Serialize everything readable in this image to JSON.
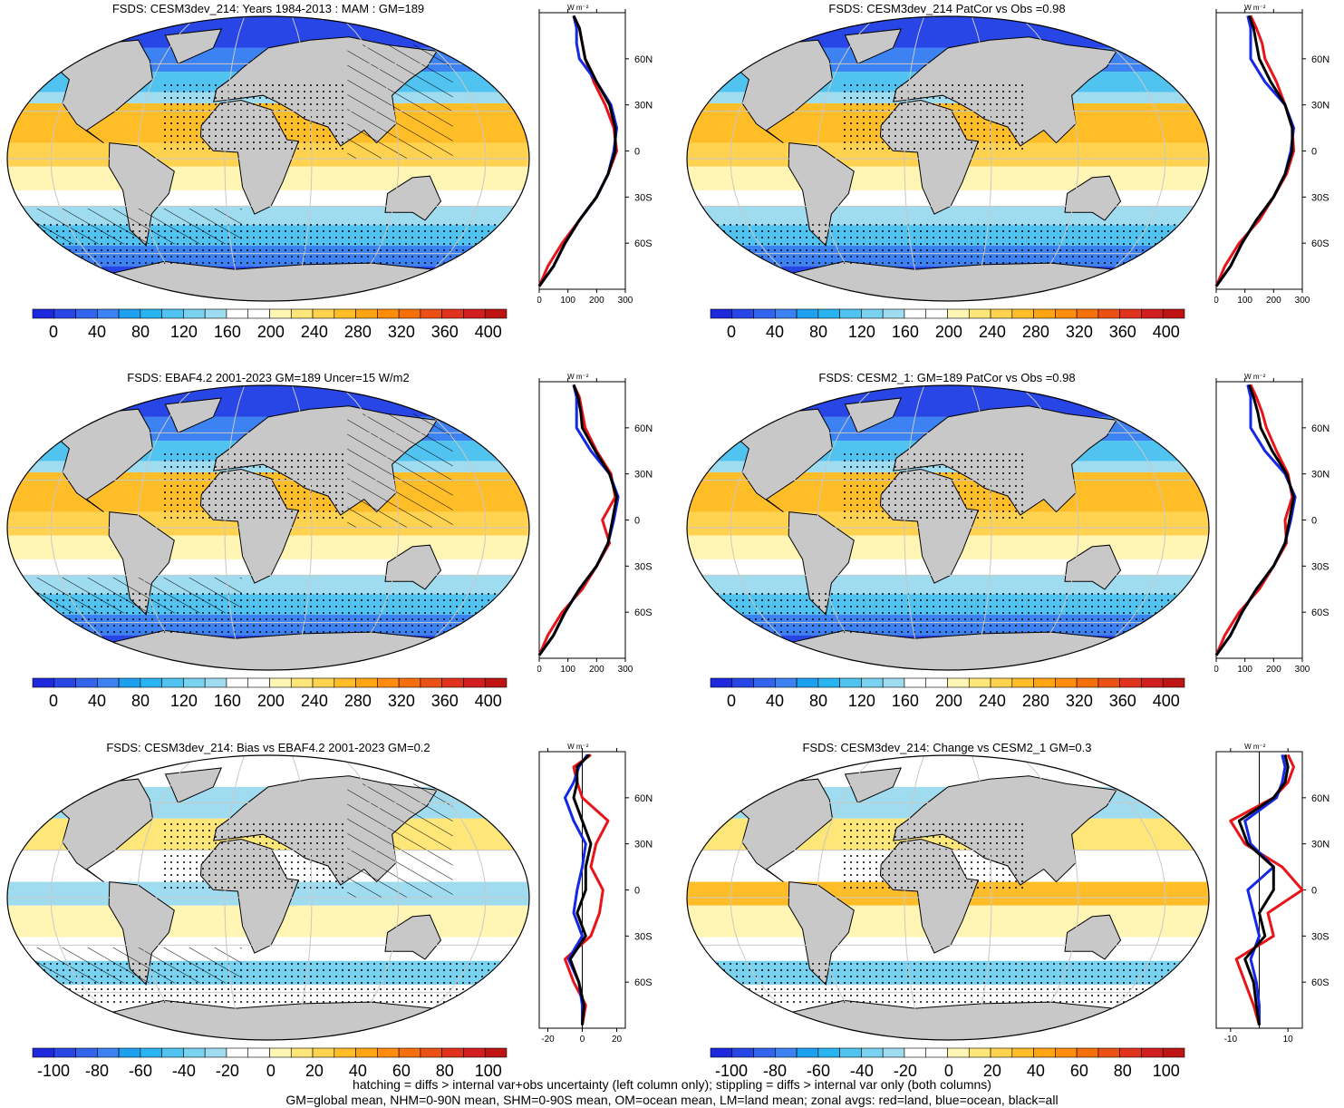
{
  "footer": {
    "line1": "hatching = diffs > internal var+obs uncertainty (left column only); stippling = diffs > internal var only (both columns)",
    "line2": "GM=global mean, NHM=0-90N mean, SHM=0-90S mean, OM=ocean mean, LM=land mean; zonal avgs: red=land, blue=ocean, black=all"
  },
  "colors": {
    "land": "#c8c8c8",
    "zonal_land": "#e8141a",
    "zonal_ocean": "#1428e6",
    "zonal_all": "#000000",
    "gridline": "#c8c8c8"
  },
  "panels": [
    {
      "title": "FSDS: CESM3dev_214: Years 1984-2013 : MAM : GM=189",
      "kind": "absolute",
      "colorbar_labels": [
        "0",
        "40",
        "80",
        "120",
        "160",
        "200",
        "240",
        "280",
        "320",
        "360",
        "400"
      ],
      "zonal_xticks": [
        "0",
        "100",
        "200",
        "300"
      ],
      "zonal_unit": "W m⁻²",
      "lat_labels": [
        "60N",
        "30N",
        "0",
        "30S",
        "60S"
      ],
      "hatching": true,
      "stippling": true
    },
    {
      "title": "FSDS: CESM3dev_214 PatCor vs Obs =0.98",
      "kind": "absolute",
      "colorbar_labels": [
        "0",
        "40",
        "80",
        "120",
        "160",
        "200",
        "240",
        "280",
        "320",
        "360",
        "400"
      ],
      "zonal_xticks": [
        "0",
        "100",
        "200",
        "300"
      ],
      "zonal_unit": "W m⁻²",
      "lat_labels": [
        "60N",
        "30N",
        "0",
        "30S",
        "60S"
      ],
      "hatching": false,
      "stippling": true
    },
    {
      "title": "FSDS: EBAF4.2 2001-2023 GM=189 Uncer=15 W/m2",
      "kind": "absolute",
      "colorbar_labels": [
        "0",
        "40",
        "80",
        "120",
        "160",
        "200",
        "240",
        "280",
        "320",
        "360",
        "400"
      ],
      "zonal_xticks": [
        "0",
        "100",
        "200",
        "300"
      ],
      "zonal_unit": "W m⁻²",
      "lat_labels": [
        "60N",
        "30N",
        "0",
        "30S",
        "60S"
      ],
      "hatching": true,
      "stippling": true
    },
    {
      "title": "FSDS: CESM2_1: GM=189 PatCor vs Obs =0.98",
      "kind": "absolute",
      "colorbar_labels": [
        "0",
        "40",
        "80",
        "120",
        "160",
        "200",
        "240",
        "280",
        "320",
        "360",
        "400"
      ],
      "zonal_xticks": [
        "0",
        "100",
        "200",
        "300"
      ],
      "zonal_unit": "W m⁻²",
      "lat_labels": [
        "60N",
        "30N",
        "0",
        "30S",
        "60S"
      ],
      "hatching": false,
      "stippling": true
    },
    {
      "title": "FSDS: CESM3dev_214: Bias vs EBAF4.2 2001-2023 GM=0.2",
      "kind": "diff",
      "colorbar_labels": [
        "-100",
        "-80",
        "-60",
        "-40",
        "-20",
        "0",
        "20",
        "40",
        "60",
        "80",
        "100"
      ],
      "zonal_xticks": [
        "-20",
        "0",
        "20"
      ],
      "zonal_unit": "W m⁻²",
      "lat_labels": [
        "60N",
        "30N",
        "0",
        "30S",
        "60S"
      ],
      "hatching": true,
      "stippling": true
    },
    {
      "title": "FSDS: CESM3dev_214: Change vs CESM2_1 GM=0.3",
      "kind": "diff",
      "colorbar_labels": [
        "-100",
        "-80",
        "-60",
        "-40",
        "-20",
        "0",
        "20",
        "40",
        "60",
        "80",
        "100"
      ],
      "zonal_xticks": [
        "-10",
        "10"
      ],
      "zonal_unit": "W m⁻²",
      "lat_labels": [
        "60N",
        "30N",
        "0",
        "30S",
        "60S"
      ],
      "hatching": false,
      "stippling": true
    }
  ],
  "colorbar_colors_absolute": [
    "#1e28dc",
    "#2846e6",
    "#3264ee",
    "#3c82f2",
    "#1ea0f0",
    "#28b4f0",
    "#50c3f0",
    "#78d2f0",
    "#a0dcf0",
    "#ffffff",
    "#ffffff",
    "#fff5b4",
    "#ffe678",
    "#ffd250",
    "#ffbe28",
    "#ffa514",
    "#ff8c0a",
    "#f5700a",
    "#eb5014",
    "#e1321e",
    "#d21e1e",
    "#be1414"
  ],
  "colorbar_colors_diff": [
    "#1e28dc",
    "#2846e6",
    "#3264ee",
    "#3c82f2",
    "#1ea0f0",
    "#28b4f0",
    "#50c3f0",
    "#78d2f0",
    "#a0dcf0",
    "#ffffff",
    "#ffffff",
    "#fff5b4",
    "#ffe678",
    "#ffd250",
    "#ffbe28",
    "#ffa514",
    "#ff8c0a",
    "#f5700a",
    "#eb5014",
    "#e1321e",
    "#d21e1e",
    "#be1414"
  ],
  "chart_data": [
    {
      "type": "line",
      "title": "FSDS: CESM3dev_214: Years 1984-2013 : MAM : GM=189",
      "xlabel": "W m⁻²",
      "ylabel": "",
      "xlim": [
        0,
        300
      ],
      "ylim": [
        -90,
        90
      ],
      "series": [
        {
          "name": "land",
          "x": [
            0,
            30,
            80,
            140,
            200,
            240,
            270,
            260,
            230,
            190,
            160,
            150,
            140,
            120
          ],
          "y": [
            -88,
            -75,
            -60,
            -45,
            -30,
            -15,
            0,
            15,
            30,
            45,
            60,
            70,
            80,
            88
          ]
        },
        {
          "name": "ocean",
          "x": [
            0,
            50,
            90,
            140,
            200,
            240,
            260,
            270,
            250,
            200,
            140,
            130,
            130,
            120
          ],
          "y": [
            -88,
            -75,
            -60,
            -45,
            -30,
            -15,
            0,
            15,
            30,
            45,
            60,
            70,
            80,
            88
          ]
        },
        {
          "name": "all",
          "x": [
            0,
            50,
            90,
            140,
            200,
            240,
            265,
            265,
            245,
            200,
            160,
            150,
            140,
            120
          ],
          "y": [
            -88,
            -75,
            -60,
            -45,
            -30,
            -15,
            0,
            15,
            30,
            45,
            60,
            70,
            80,
            88
          ]
        }
      ]
    },
    {
      "type": "line",
      "title": "FSDS: CESM3dev_214 PatCor vs Obs =0.98",
      "xlabel": "W m⁻²",
      "xlim": [
        0,
        300
      ],
      "ylim": [
        -90,
        90
      ],
      "series": [
        {
          "name": "land",
          "x": [
            0,
            30,
            80,
            150,
            200,
            245,
            270,
            265,
            240,
            210,
            170,
            160,
            140,
            120
          ],
          "y": [
            -88,
            -75,
            -60,
            -45,
            -30,
            -15,
            0,
            15,
            30,
            45,
            60,
            70,
            80,
            88
          ]
        },
        {
          "name": "ocean",
          "x": [
            0,
            50,
            90,
            140,
            200,
            240,
            260,
            270,
            240,
            170,
            120,
            120,
            120,
            110
          ],
          "y": [
            -88,
            -75,
            -60,
            -45,
            -30,
            -15,
            0,
            15,
            30,
            45,
            60,
            70,
            80,
            88
          ]
        },
        {
          "name": "all",
          "x": [
            0,
            50,
            90,
            140,
            200,
            240,
            265,
            265,
            240,
            190,
            150,
            140,
            130,
            115
          ],
          "y": [
            -88,
            -75,
            -60,
            -45,
            -30,
            -15,
            0,
            15,
            30,
            45,
            60,
            70,
            80,
            88
          ]
        }
      ]
    },
    {
      "type": "line",
      "title": "FSDS: EBAF4.2 2001-2023 GM=189 Uncer=15 W/m2",
      "xlabel": "W m⁻²",
      "xlim": [
        0,
        300
      ],
      "ylim": [
        -90,
        90
      ],
      "series": [
        {
          "name": "land",
          "x": [
            0,
            30,
            80,
            150,
            200,
            245,
            220,
            265,
            250,
            200,
            160,
            150,
            140,
            120
          ],
          "y": [
            -88,
            -75,
            -60,
            -45,
            -30,
            -15,
            0,
            15,
            30,
            45,
            60,
            70,
            80,
            88
          ]
        },
        {
          "name": "ocean",
          "x": [
            0,
            50,
            90,
            140,
            200,
            240,
            260,
            275,
            245,
            180,
            130,
            130,
            130,
            120
          ],
          "y": [
            -88,
            -75,
            -60,
            -45,
            -30,
            -15,
            0,
            15,
            30,
            45,
            60,
            70,
            80,
            88
          ]
        },
        {
          "name": "all",
          "x": [
            0,
            50,
            90,
            140,
            200,
            240,
            255,
            270,
            245,
            195,
            150,
            145,
            135,
            120
          ],
          "y": [
            -88,
            -75,
            -60,
            -45,
            -30,
            -15,
            0,
            15,
            30,
            45,
            60,
            70,
            80,
            88
          ]
        }
      ]
    },
    {
      "type": "line",
      "title": "FSDS: CESM2_1: GM=189 PatCor vs Obs =0.98",
      "xlabel": "W m⁻²",
      "xlim": [
        0,
        300
      ],
      "ylim": [
        -90,
        90
      ],
      "series": [
        {
          "name": "land",
          "x": [
            0,
            30,
            80,
            150,
            200,
            245,
            240,
            265,
            250,
            210,
            175,
            160,
            140,
            120
          ],
          "y": [
            -88,
            -75,
            -60,
            -45,
            -30,
            -15,
            0,
            15,
            30,
            45,
            60,
            70,
            80,
            88
          ]
        },
        {
          "name": "ocean",
          "x": [
            0,
            50,
            90,
            140,
            200,
            240,
            260,
            275,
            240,
            170,
            120,
            120,
            120,
            110
          ],
          "y": [
            -88,
            -75,
            -60,
            -45,
            -30,
            -15,
            0,
            15,
            30,
            45,
            60,
            70,
            80,
            88
          ]
        },
        {
          "name": "all",
          "x": [
            0,
            50,
            90,
            140,
            200,
            240,
            255,
            270,
            245,
            195,
            155,
            145,
            130,
            115
          ],
          "y": [
            -88,
            -75,
            -60,
            -45,
            -30,
            -15,
            0,
            15,
            30,
            45,
            60,
            70,
            80,
            88
          ]
        }
      ]
    },
    {
      "type": "line",
      "title": "FSDS: CESM3dev_214: Bias vs EBAF4.2 2001-2023 GM=0.2",
      "xlabel": "W m⁻²",
      "xlim": [
        -25,
        25
      ],
      "ylim": [
        -90,
        90
      ],
      "series": [
        {
          "name": "land",
          "x": [
            0,
            2,
            -5,
            -10,
            5,
            10,
            12,
            5,
            8,
            15,
            0,
            -3,
            -5,
            5
          ],
          "y": [
            -88,
            -75,
            -60,
            -45,
            -30,
            -15,
            0,
            15,
            30,
            45,
            60,
            70,
            80,
            88
          ]
        },
        {
          "name": "ocean",
          "x": [
            0,
            0,
            -2,
            -8,
            0,
            -5,
            -3,
            0,
            2,
            -5,
            -10,
            -5,
            -2,
            3
          ],
          "y": [
            -88,
            -75,
            -60,
            -45,
            -30,
            -15,
            0,
            15,
            30,
            45,
            60,
            70,
            80,
            88
          ]
        },
        {
          "name": "all",
          "x": [
            0,
            1,
            -2,
            -7,
            2,
            -3,
            2,
            2,
            5,
            0,
            -5,
            -3,
            -3,
            4
          ],
          "y": [
            -88,
            -75,
            -60,
            -45,
            -30,
            -15,
            0,
            15,
            30,
            45,
            60,
            70,
            80,
            88
          ]
        }
      ]
    },
    {
      "type": "line",
      "title": "FSDS: CESM3dev_214: Change vs CESM2_1 GM=0.3",
      "xlabel": "W m⁻²",
      "xlim": [
        -15,
        15
      ],
      "ylim": [
        -90,
        90
      ],
      "series": [
        {
          "name": "land",
          "x": [
            0,
            -2,
            -5,
            -8,
            5,
            3,
            15,
            8,
            -5,
            -10,
            5,
            10,
            12,
            10
          ],
          "y": [
            -88,
            -75,
            -60,
            -45,
            -30,
            -15,
            0,
            15,
            30,
            45,
            60,
            70,
            80,
            88
          ]
        },
        {
          "name": "ocean",
          "x": [
            0,
            0,
            -1,
            -3,
            0,
            -2,
            -4,
            5,
            -3,
            -5,
            6,
            8,
            9,
            8
          ],
          "y": [
            -88,
            -75,
            -60,
            -45,
            -30,
            -15,
            0,
            15,
            30,
            45,
            60,
            70,
            80,
            88
          ]
        },
        {
          "name": "all",
          "x": [
            0,
            -1,
            -2,
            -5,
            2,
            0,
            5,
            5,
            -4,
            -7,
            5,
            9,
            10,
            9
          ],
          "y": [
            -88,
            -75,
            -60,
            -45,
            -30,
            -15,
            0,
            15,
            30,
            45,
            60,
            70,
            80,
            88
          ]
        }
      ]
    }
  ]
}
